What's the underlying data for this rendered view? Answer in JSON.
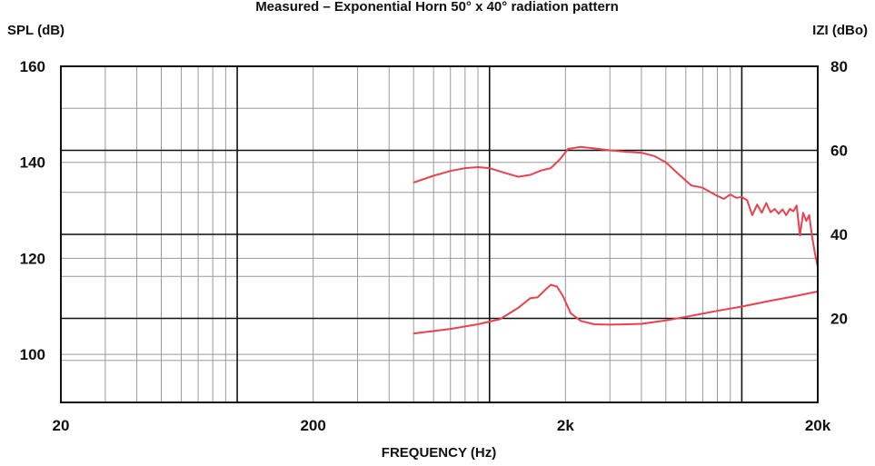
{
  "chart_data": {
    "type": "line",
    "title": "Measured – Exponential Horn 50° x 40° radiation pattern",
    "xlabel": "FREQUENCY (Hz)",
    "ylabel": "SPL (dB)",
    "y2label": "IZI (dBo)",
    "x_scale": "log",
    "xlim": [
      20,
      20000
    ],
    "ylim": [
      90,
      160
    ],
    "y2lim": [
      0,
      80
    ],
    "grid": true,
    "line_color": "#e8424f",
    "x_ticks": [
      {
        "value": 20,
        "label": "20"
      },
      {
        "value": 200,
        "label": "200"
      },
      {
        "value": 2000,
        "label": "2k"
      },
      {
        "value": 20000,
        "label": "20k"
      }
    ],
    "y_ticks": [
      {
        "value": 100,
        "label": "100"
      },
      {
        "value": 120,
        "label": "120"
      },
      {
        "value": 140,
        "label": "140"
      },
      {
        "value": 160,
        "label": "160"
      }
    ],
    "y2_ticks": [
      {
        "value": 20,
        "label": "20"
      },
      {
        "value": 40,
        "label": "40"
      },
      {
        "value": 60,
        "label": "60"
      },
      {
        "value": 80,
        "label": "80"
      }
    ],
    "series": [
      {
        "axis": "left",
        "x": [
          500,
          600,
          700,
          800,
          900,
          1000,
          1150,
          1300,
          1450,
          1600,
          1750,
          1900,
          2050,
          2300,
          2600,
          3000,
          3500,
          4000,
          4500,
          5000,
          5600,
          6300,
          7000,
          8000,
          8500,
          9000,
          9500,
          10000,
          10500,
          11000,
          11500,
          12000,
          12500,
          13000,
          13500,
          14000,
          14500,
          15000,
          15500,
          16000,
          16500,
          17000,
          17500,
          18000,
          18500,
          19000,
          19500,
          20000
        ],
        "y": [
          135.8,
          137.2,
          138.2,
          138.8,
          139.0,
          138.8,
          137.8,
          137.0,
          137.4,
          138.3,
          138.8,
          140.6,
          142.8,
          143.2,
          142.9,
          142.5,
          142.2,
          142.0,
          141.3,
          140.0,
          137.6,
          135.2,
          134.7,
          133.0,
          132.4,
          133.3,
          132.6,
          132.8,
          132.1,
          129.0,
          131.2,
          129.5,
          131.5,
          129.6,
          130.3,
          129.3,
          130.2,
          129.0,
          130.3,
          129.8,
          131.0,
          124.8,
          129.5,
          127.8,
          129.0,
          124.5,
          121.0,
          118.2
        ]
      },
      {
        "axis": "right",
        "x": [
          500,
          700,
          900,
          1100,
          1300,
          1450,
          1550,
          1650,
          1750,
          1850,
          1950,
          2100,
          2300,
          2600,
          3000,
          3500,
          4000,
          5000,
          6300,
          8000,
          10000,
          12500,
          16000,
          20000
        ],
        "y": [
          16.4,
          17.5,
          18.6,
          19.8,
          22.5,
          24.8,
          25.0,
          26.6,
          28.0,
          27.6,
          25.4,
          21.2,
          19.4,
          18.6,
          18.5,
          18.6,
          18.7,
          19.5,
          20.6,
          21.8,
          22.8,
          24.0,
          25.2,
          26.4
        ]
      }
    ]
  }
}
